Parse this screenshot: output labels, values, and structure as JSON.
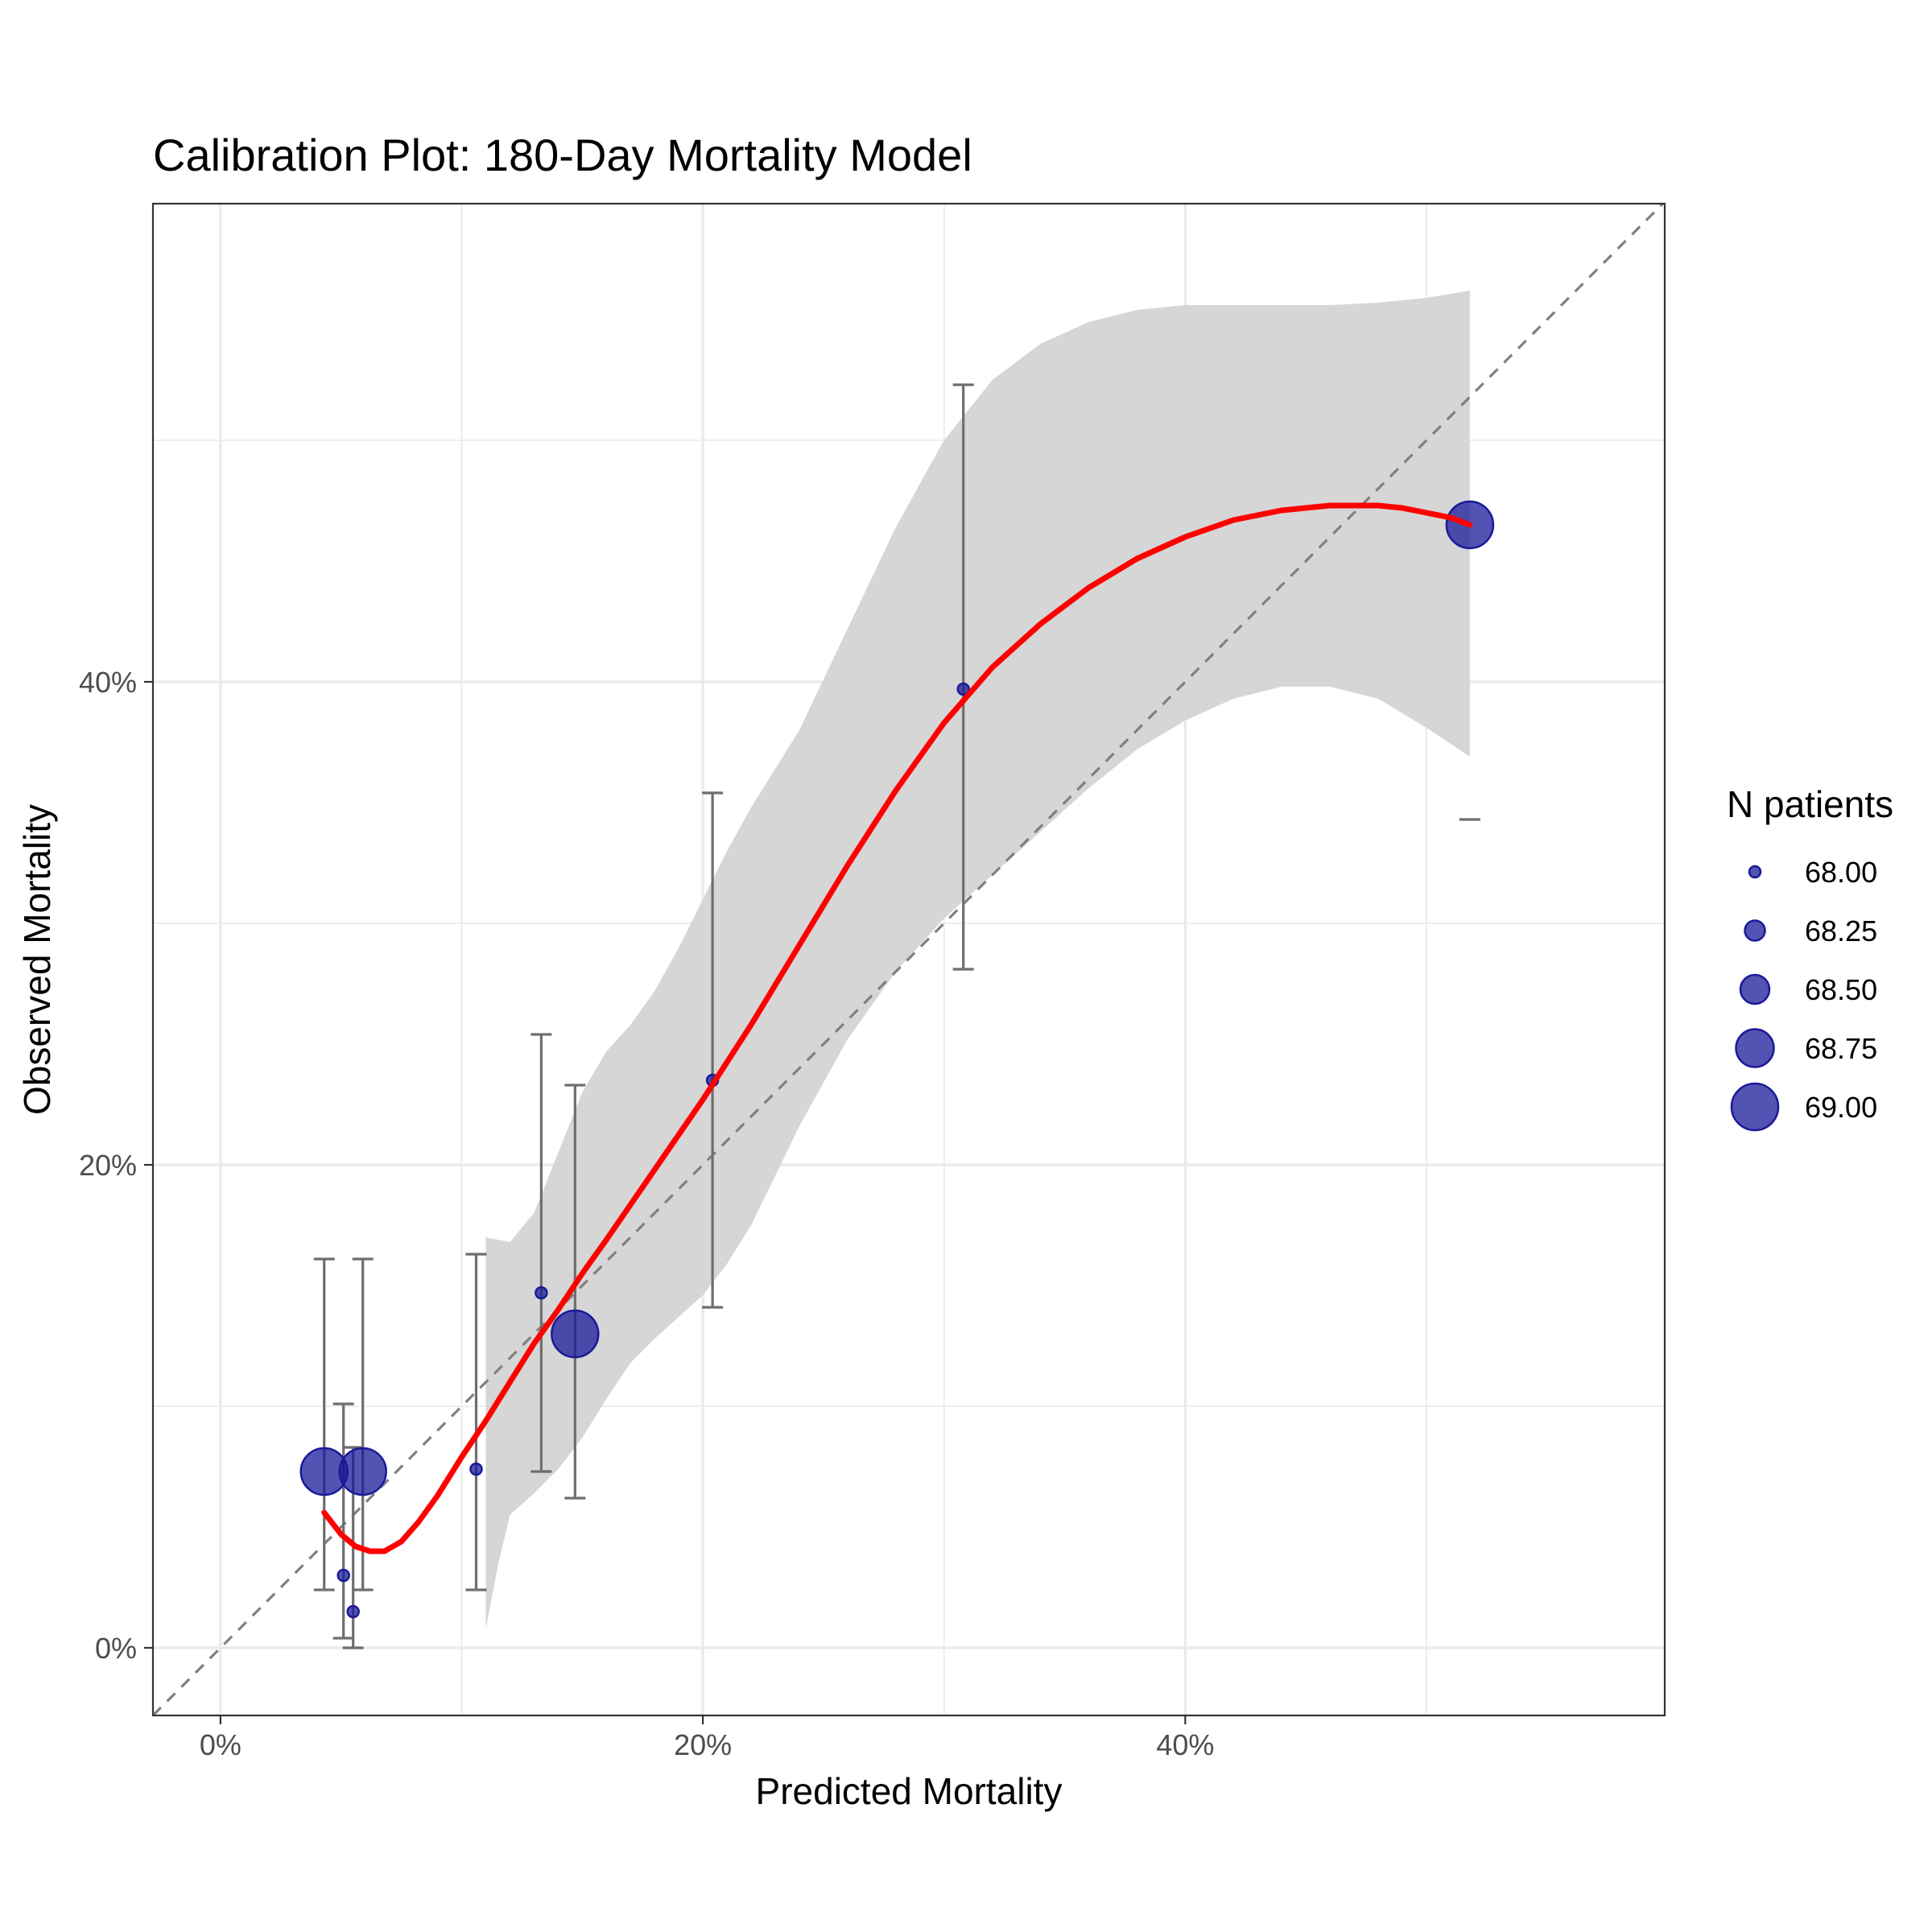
{
  "chart_data": {
    "type": "scatter",
    "title": "Calibration Plot: 180-Day Mortality Model",
    "xlabel": "Predicted Mortality",
    "ylabel": "Observed Mortality",
    "xlim": [
      -0.028,
      0.5988
    ],
    "ylim": [
      -0.028,
      0.598
    ],
    "x_ticks": [
      {
        "value": 0.0,
        "label": "0%"
      },
      {
        "value": 0.2,
        "label": "20%"
      },
      {
        "value": 0.4,
        "label": "40%"
      }
    ],
    "y_ticks": [
      {
        "value": 0.0,
        "label": "0%"
      },
      {
        "value": 0.2,
        "label": "20%"
      },
      {
        "value": 0.4,
        "label": "40%"
      }
    ],
    "x_minor": [
      0.1,
      0.3,
      0.5
    ],
    "y_minor": [
      0.1,
      0.3,
      0.5
    ],
    "grid": true,
    "reference_line": {
      "style": "dashed",
      "slope": 1,
      "intercept": 0,
      "color": "#808080"
    },
    "points": [
      {
        "x": 0.043,
        "y": 0.073,
        "n": 69.0,
        "lo": 0.024,
        "hi": 0.161
      },
      {
        "x": 0.051,
        "y": 0.03,
        "n": 68.0,
        "lo": 0.004,
        "hi": 0.101
      },
      {
        "x": 0.055,
        "y": 0.015,
        "n": 68.0,
        "lo": 0.0,
        "hi": 0.083
      },
      {
        "x": 0.059,
        "y": 0.073,
        "n": 69.0,
        "lo": 0.024,
        "hi": 0.161
      },
      {
        "x": 0.106,
        "y": 0.074,
        "n": 68.0,
        "lo": 0.024,
        "hi": 0.163
      },
      {
        "x": 0.133,
        "y": 0.147,
        "n": 68.0,
        "lo": 0.073,
        "hi": 0.254
      },
      {
        "x": 0.147,
        "y": 0.13,
        "n": 69.0,
        "lo": 0.062,
        "hi": 0.233
      },
      {
        "x": 0.204,
        "y": 0.235,
        "n": 68.0,
        "lo": 0.141,
        "hi": 0.354
      },
      {
        "x": 0.308,
        "y": 0.397,
        "n": 68.0,
        "lo": 0.281,
        "hi": 0.523
      },
      {
        "x": 0.518,
        "y": 0.465,
        "n": 69.0,
        "lo": 0.343,
        "hi": null
      }
    ],
    "smooth_curve": {
      "color": "#ff0000",
      "x": [
        0.043,
        0.05,
        0.056,
        0.062,
        0.068,
        0.075,
        0.082,
        0.09,
        0.1,
        0.11,
        0.12,
        0.13,
        0.14,
        0.15,
        0.16,
        0.18,
        0.2,
        0.22,
        0.24,
        0.26,
        0.28,
        0.3,
        0.32,
        0.34,
        0.36,
        0.38,
        0.4,
        0.42,
        0.44,
        0.46,
        0.47,
        0.48,
        0.49,
        0.5,
        0.51,
        0.518
      ],
      "y": [
        0.056,
        0.047,
        0.042,
        0.04,
        0.04,
        0.044,
        0.052,
        0.063,
        0.079,
        0.094,
        0.11,
        0.126,
        0.14,
        0.155,
        0.169,
        0.198,
        0.227,
        0.258,
        0.291,
        0.324,
        0.355,
        0.383,
        0.406,
        0.424,
        0.439,
        0.451,
        0.46,
        0.467,
        0.471,
        0.473,
        0.473,
        0.473,
        0.472,
        0.47,
        0.468,
        0.465
      ]
    },
    "ci_band": {
      "color": "#d6d6d6",
      "x": [
        0.11,
        0.115,
        0.12,
        0.13,
        0.14,
        0.15,
        0.16,
        0.17,
        0.18,
        0.19,
        0.2,
        0.21,
        0.22,
        0.24,
        0.26,
        0.28,
        0.3,
        0.32,
        0.34,
        0.36,
        0.38,
        0.4,
        0.42,
        0.44,
        0.46,
        0.48,
        0.5,
        0.518
      ],
      "lower": [
        0.008,
        0.034,
        0.055,
        0.064,
        0.074,
        0.087,
        0.103,
        0.118,
        0.128,
        0.137,
        0.146,
        0.159,
        0.175,
        0.216,
        0.252,
        0.28,
        0.302,
        0.32,
        0.338,
        0.356,
        0.372,
        0.384,
        0.393,
        0.398,
        0.398,
        0.393,
        0.381,
        0.369
      ],
      "upper": [
        0.17,
        0.169,
        0.168,
        0.18,
        0.205,
        0.23,
        0.247,
        0.258,
        0.272,
        0.29,
        0.31,
        0.33,
        0.348,
        0.38,
        0.422,
        0.464,
        0.5,
        0.525,
        0.54,
        0.549,
        0.554,
        0.556,
        0.556,
        0.556,
        0.556,
        0.557,
        0.559,
        0.562
      ]
    },
    "point_color": "#1a1a99",
    "legend": {
      "title": "N patients",
      "placement": "right",
      "entries": [
        {
          "label": "68.00",
          "n": 68.0
        },
        {
          "label": "68.25",
          "n": 68.25
        },
        {
          "label": "68.50",
          "n": 68.5
        },
        {
          "label": "68.75",
          "n": 68.75
        },
        {
          "label": "69.00",
          "n": 69.0
        }
      ]
    }
  }
}
